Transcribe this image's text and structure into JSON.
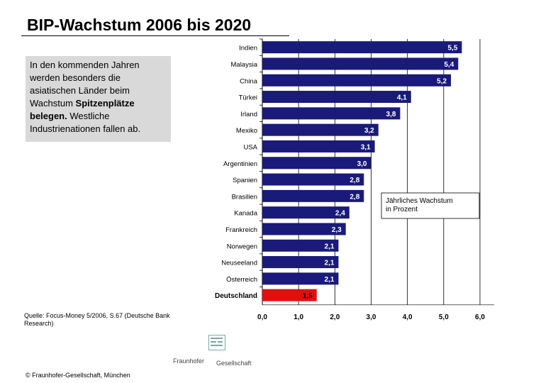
{
  "page": {
    "title": "BIP-Wachstum 2006 bis 2020",
    "intro_part1": "In den kommenden Jahren werden besonders die asiatischen Länder beim Wachstum ",
    "intro_bold": "Spitzenplätze belegen.",
    "intro_part2": " Westliche Industrienationen fallen ab.",
    "source": "Quelle: Focus-Money 5/2006, S.67 (Deutsche Bank Research)",
    "copyright": "© Fraunhofer-Gesellschaft, München",
    "logo_word1": "Fraunhofer",
    "logo_word2": "Gesellschaft"
  },
  "chart_data": {
    "type": "bar",
    "orientation": "horizontal",
    "categories": [
      "Indien",
      "Malaysia",
      "China",
      "Türkei",
      "Irland",
      "Mexiko",
      "USA",
      "Argentinien",
      "Spanien",
      "Brasilien",
      "Kanada",
      "Frankreich",
      "Norwegen",
      "Neuseeland",
      "Österreich",
      "Deutschland"
    ],
    "values": [
      5.5,
      5.4,
      5.2,
      4.1,
      3.8,
      3.2,
      3.1,
      3.0,
      2.8,
      2.8,
      2.4,
      2.3,
      2.1,
      2.1,
      2.1,
      1.5
    ],
    "value_labels": [
      "5,5",
      "5,4",
      "5,2",
      "4,1",
      "3,8",
      "3,2",
      "3,1",
      "3,0",
      "2,8",
      "2,8",
      "2,4",
      "2,3",
      "2,1",
      "2,1",
      "2,1",
      "1,5"
    ],
    "highlight": "Deutschland",
    "bar_color": "#1a1a7a",
    "highlight_color": "#e01010",
    "xlim": [
      0,
      6
    ],
    "xticks": [
      "0,0",
      "1,0",
      "2,0",
      "3,0",
      "4,0",
      "5,0",
      "6,0"
    ],
    "legend_note": "Jährliches Wachstum in Prozent",
    "grid": "vertical"
  }
}
